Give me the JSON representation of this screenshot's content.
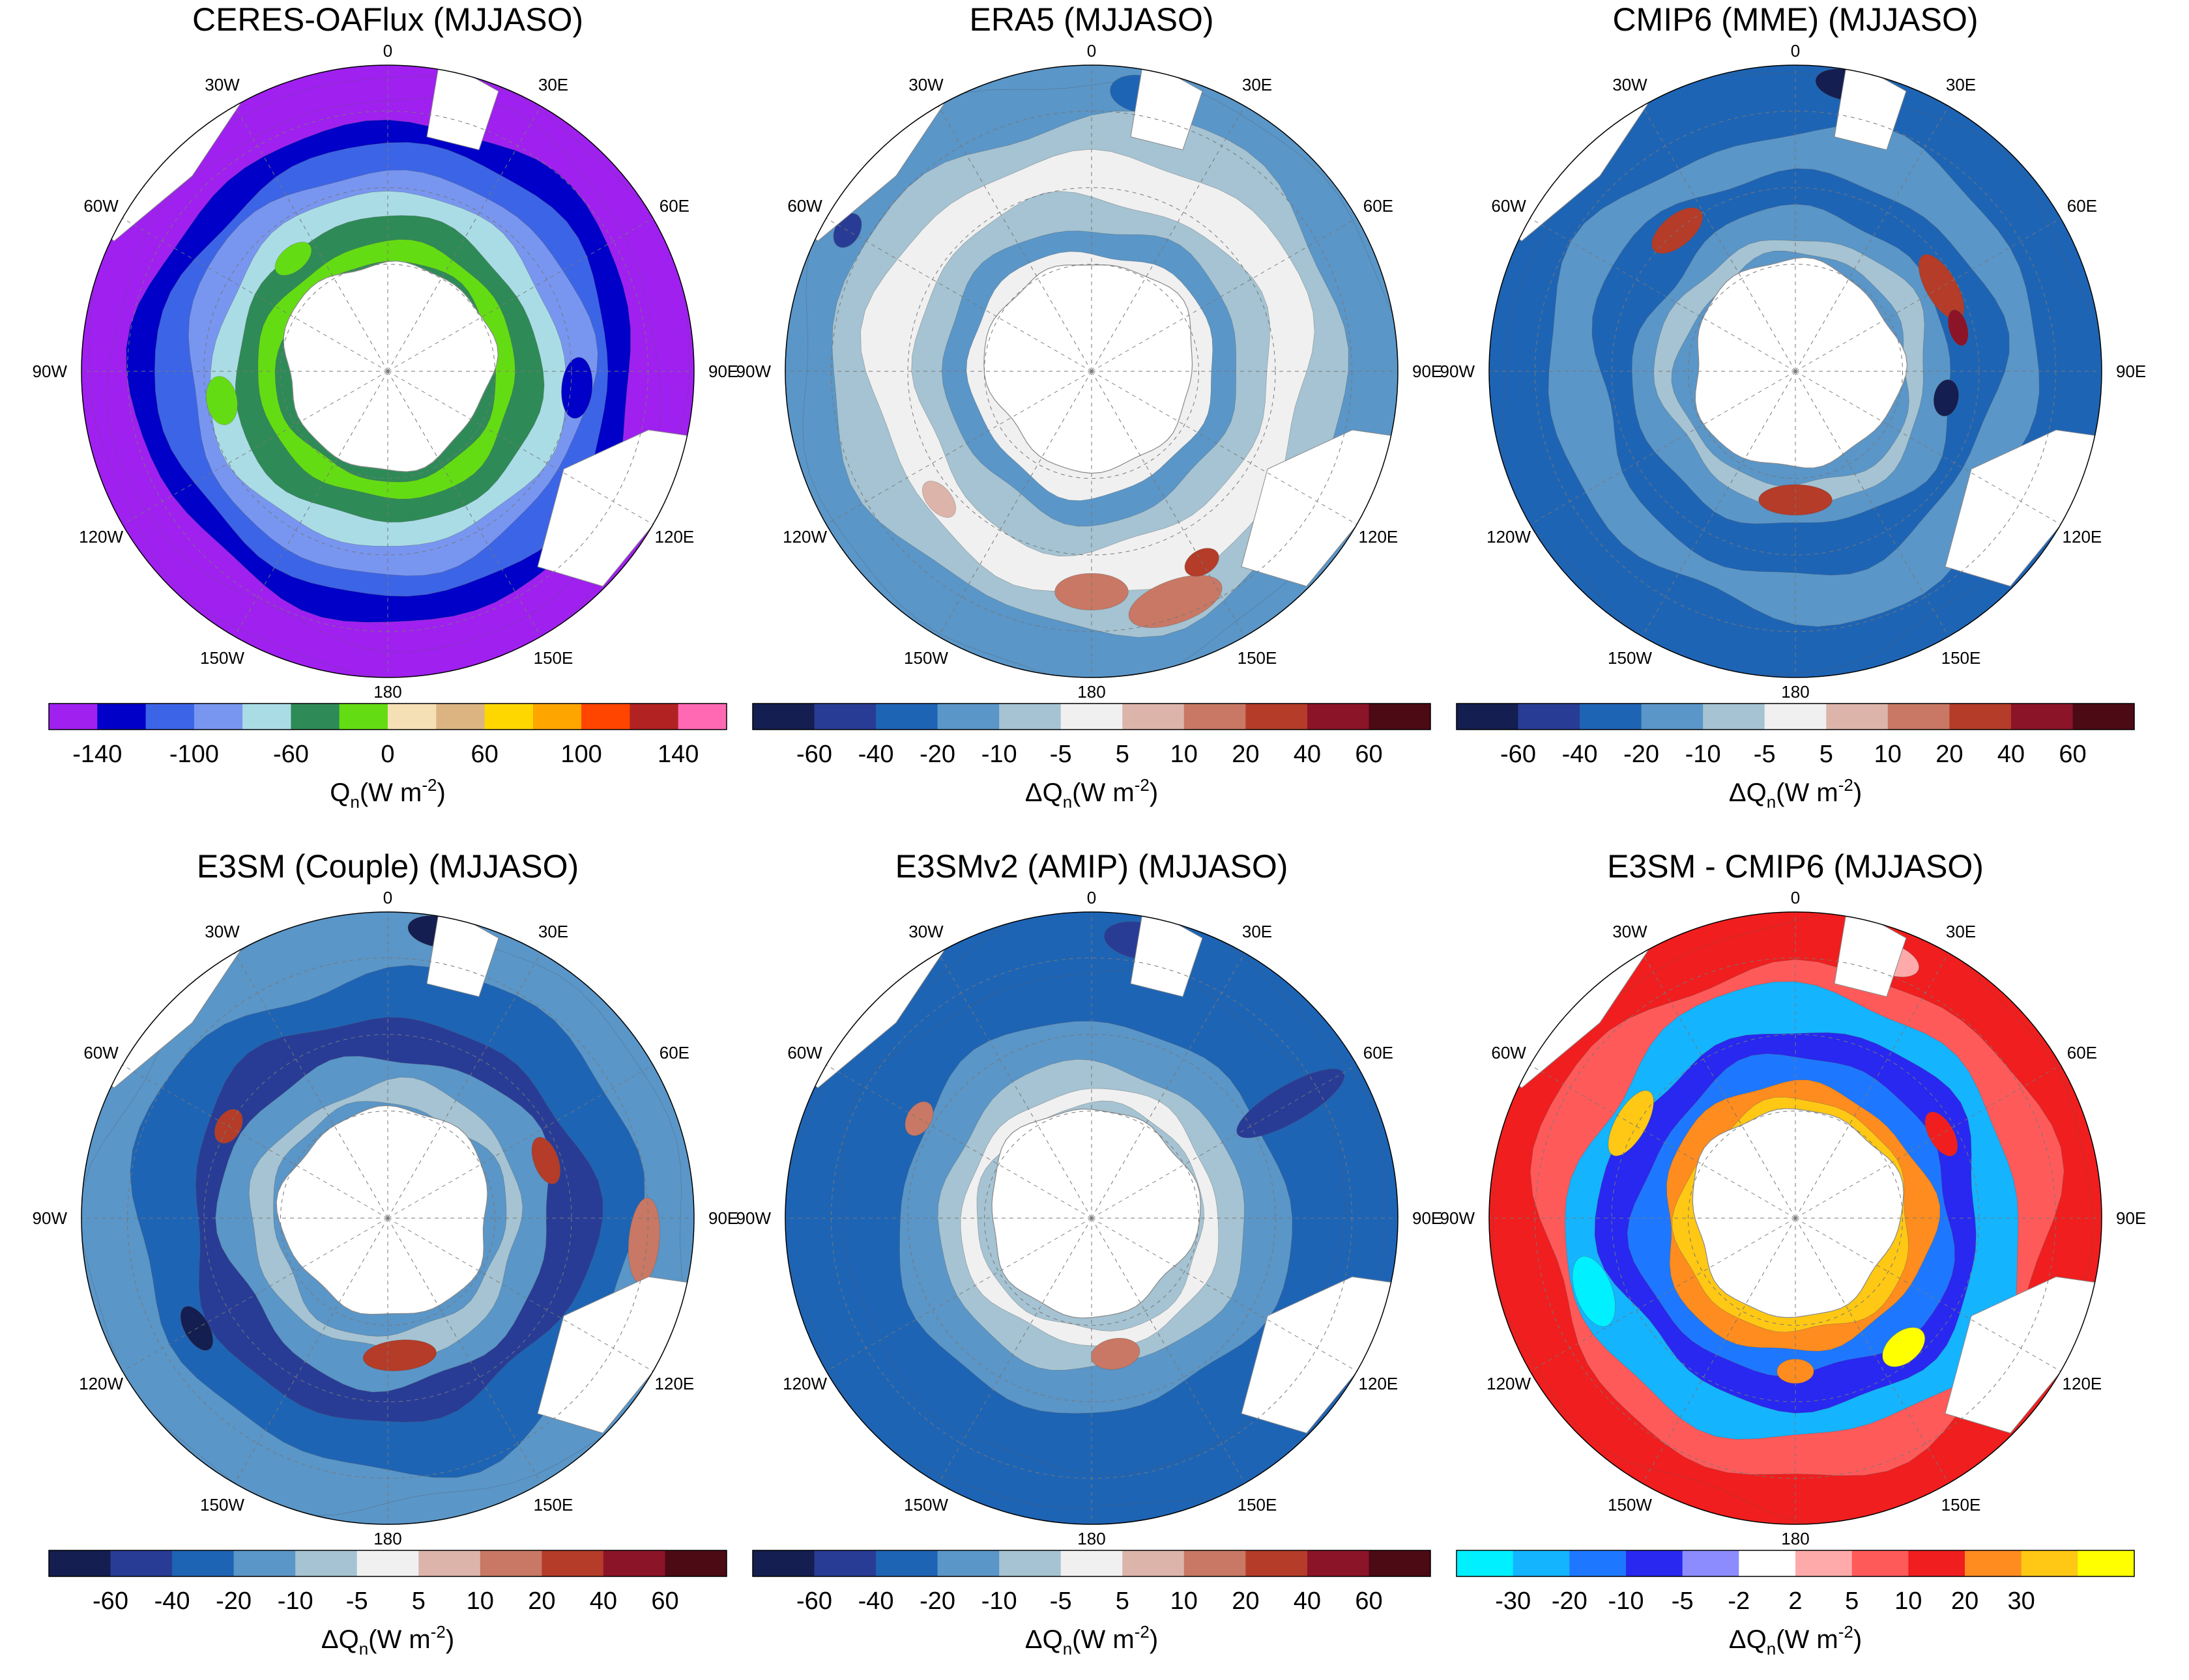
{
  "chart_data": [
    {
      "type": "heatmap",
      "projection": "south-polar-stereographic",
      "title": "CERES-OAFlux  (MJJASO)",
      "lon_labels": {
        "top": "0",
        "e30": "30E",
        "e60": "60E",
        "e90": "90E",
        "e120": "120E",
        "e150": "150E",
        "bottom": "180",
        "w150": "150W",
        "w120": "120W",
        "w90": "90W",
        "w60": "60W",
        "w30": "30W"
      },
      "colorbar": {
        "colors": [
          "#a020f0",
          "#0000c8",
          "#3c64e6",
          "#7896f0",
          "#aadce6",
          "#2e8b57",
          "#64dc14",
          "#f5dfb4",
          "#dcb482",
          "#ffd700",
          "#ffa500",
          "#ff4500",
          "#b22222",
          "#ff69b4"
        ],
        "ticks": [
          {
            "edge": 1,
            "label": "-140"
          },
          {
            "edge": 3,
            "label": "-100"
          },
          {
            "edge": 5,
            "label": "-60"
          },
          {
            "edge": 7,
            "label": "0"
          },
          {
            "edge": 9,
            "label": "60"
          },
          {
            "edge": 11,
            "label": "100"
          },
          {
            "edge": 13,
            "label": "140"
          }
        ],
        "label_main": "Q",
        "label_sub": "n",
        "label_unit": "(W m",
        "label_sup": "-2",
        "label_end": ")"
      },
      "rings": [
        {
          "r": 0.98,
          "c": 0
        },
        {
          "r": 0.9,
          "c": 0
        },
        {
          "r": 0.82,
          "c": 1
        },
        {
          "r": 0.74,
          "c": 2
        },
        {
          "r": 0.66,
          "c": 3
        },
        {
          "r": 0.58,
          "c": 4
        },
        {
          "r": 0.5,
          "c": 5
        },
        {
          "r": 0.42,
          "c": 6
        },
        {
          "r": 0.36,
          "c": 5
        }
      ],
      "patches": [
        {
          "ang": 95,
          "r": 0.62,
          "rx": 0.1,
          "ry": 0.05,
          "c": 1
        },
        {
          "ang": 260,
          "r": 0.55,
          "rx": 0.08,
          "ry": 0.05,
          "c": 6
        },
        {
          "ang": 320,
          "r": 0.48,
          "rx": 0.07,
          "ry": 0.04,
          "c": 6
        }
      ],
      "wobble": 0.05,
      "seed": 1
    },
    {
      "type": "heatmap",
      "projection": "south-polar-stereographic",
      "title": "ERA5  (MJJASO)",
      "lon_labels": {
        "top": "0",
        "e30": "30E",
        "e60": "60E",
        "e90": "90E",
        "e120": "120E",
        "e150": "150E",
        "bottom": "180",
        "w150": "150W",
        "w120": "120W",
        "w90": "90W",
        "w60": "60W",
        "w30": "30W"
      },
      "colorbar": {
        "colors": [
          "#141e50",
          "#283c96",
          "#1e64b4",
          "#5a96c8",
          "#a5c3d2",
          "#f0f0f0",
          "#dcb4aa",
          "#c87864",
          "#b43c28",
          "#8c1428",
          "#4b0a14"
        ],
        "ticks": [
          {
            "edge": 1,
            "label": "-60"
          },
          {
            "edge": 2,
            "label": "-40"
          },
          {
            "edge": 3,
            "label": "-20"
          },
          {
            "edge": 4,
            "label": "-10"
          },
          {
            "edge": 5,
            "label": "-5"
          },
          {
            "edge": 6,
            "label": "5"
          },
          {
            "edge": 7,
            "label": "10"
          },
          {
            "edge": 8,
            "label": "20"
          },
          {
            "edge": 9,
            "label": "40"
          },
          {
            "edge": 10,
            "label": "60"
          }
        ],
        "label_main": "ΔQ",
        "label_sub": "n",
        "label_unit": "(W m",
        "label_sup": "-2",
        "label_end": ")"
      },
      "rings": [
        {
          "r": 0.98,
          "c": 3
        },
        {
          "r": 0.84,
          "c": 4
        },
        {
          "r": 0.72,
          "c": 5
        },
        {
          "r": 0.58,
          "c": 4
        },
        {
          "r": 0.48,
          "c": 3
        },
        {
          "r": 0.4,
          "c": 5
        }
      ],
      "patches": [
        {
          "ang": 180,
          "r": 0.72,
          "rx": 0.12,
          "ry": 0.06,
          "c": 7
        },
        {
          "ang": 160,
          "r": 0.8,
          "rx": 0.16,
          "ry": 0.07,
          "c": 7
        },
        {
          "ang": 150,
          "r": 0.72,
          "rx": 0.06,
          "ry": 0.04,
          "c": 8
        },
        {
          "ang": 230,
          "r": 0.65,
          "rx": 0.07,
          "ry": 0.04,
          "c": 6
        },
        {
          "ang": 10,
          "r": 0.92,
          "rx": 0.1,
          "ry": 0.06,
          "c": 2
        },
        {
          "ang": 300,
          "r": 0.92,
          "rx": 0.06,
          "ry": 0.04,
          "c": 1
        }
      ],
      "wobble": 0.07,
      "seed": 2
    },
    {
      "type": "heatmap",
      "projection": "south-polar-stereographic",
      "title": "CMIP6 (MME)  (MJJASO)",
      "lon_labels": {
        "top": "0",
        "e30": "30E",
        "e60": "60E",
        "e90": "90E",
        "e120": "120E",
        "e150": "150E",
        "bottom": "180",
        "w150": "150W",
        "w120": "120W",
        "w90": "90W",
        "w60": "60W",
        "w30": "30W"
      },
      "colorbar": {
        "colors": [
          "#141e50",
          "#283c96",
          "#1e64b4",
          "#5a96c8",
          "#a5c3d2",
          "#f0f0f0",
          "#dcb4aa",
          "#c87864",
          "#b43c28",
          "#8c1428",
          "#4b0a14"
        ],
        "ticks": [
          {
            "edge": 1,
            "label": "-60"
          },
          {
            "edge": 2,
            "label": "-40"
          },
          {
            "edge": 3,
            "label": "-20"
          },
          {
            "edge": 4,
            "label": "-10"
          },
          {
            "edge": 5,
            "label": "-5"
          },
          {
            "edge": 6,
            "label": "5"
          },
          {
            "edge": 7,
            "label": "10"
          },
          {
            "edge": 8,
            "label": "20"
          },
          {
            "edge": 9,
            "label": "40"
          },
          {
            "edge": 10,
            "label": "60"
          }
        ],
        "label_main": "ΔQ",
        "label_sub": "n",
        "label_unit": "(W m",
        "label_sup": "-2",
        "label_end": ")"
      },
      "rings": [
        {
          "r": 0.98,
          "c": 2
        },
        {
          "r": 0.8,
          "c": 3
        },
        {
          "r": 0.66,
          "c": 2
        },
        {
          "r": 0.52,
          "c": 3
        },
        {
          "r": 0.44,
          "c": 4
        },
        {
          "r": 0.38,
          "c": 3
        }
      ],
      "patches": [
        {
          "ang": 60,
          "r": 0.55,
          "rx": 0.12,
          "ry": 0.05,
          "c": 8
        },
        {
          "ang": 75,
          "r": 0.55,
          "rx": 0.06,
          "ry": 0.03,
          "c": 9
        },
        {
          "ang": 320,
          "r": 0.6,
          "rx": 0.1,
          "ry": 0.05,
          "c": 8
        },
        {
          "ang": 180,
          "r": 0.42,
          "rx": 0.12,
          "ry": 0.05,
          "c": 8
        },
        {
          "ang": 100,
          "r": 0.5,
          "rx": 0.06,
          "ry": 0.04,
          "c": 0
        },
        {
          "ang": 10,
          "r": 0.95,
          "rx": 0.1,
          "ry": 0.05,
          "c": 0
        }
      ],
      "wobble": 0.08,
      "seed": 3
    },
    {
      "type": "heatmap",
      "projection": "south-polar-stereographic",
      "title": "E3SM (Couple)  (MJJASO)",
      "lon_labels": {
        "top": "0",
        "e30": "30E",
        "e60": "60E",
        "e90": "90E",
        "e120": "120E",
        "e150": "150E",
        "bottom": "180",
        "w150": "150W",
        "w120": "120W",
        "w90": "90W",
        "w60": "60W",
        "w30": "30W"
      },
      "colorbar": {
        "colors": [
          "#141e50",
          "#283c96",
          "#1e64b4",
          "#5a96c8",
          "#a5c3d2",
          "#f0f0f0",
          "#dcb4aa",
          "#c87864",
          "#b43c28",
          "#8c1428",
          "#4b0a14"
        ],
        "ticks": [
          {
            "edge": 1,
            "label": "-60"
          },
          {
            "edge": 2,
            "label": "-40"
          },
          {
            "edge": 3,
            "label": "-20"
          },
          {
            "edge": 4,
            "label": "-10"
          },
          {
            "edge": 5,
            "label": "-5"
          },
          {
            "edge": 6,
            "label": "5"
          },
          {
            "edge": 7,
            "label": "10"
          },
          {
            "edge": 8,
            "label": "20"
          },
          {
            "edge": 9,
            "label": "40"
          },
          {
            "edge": 10,
            "label": "60"
          }
        ],
        "label_main": "ΔQ",
        "label_sub": "n",
        "label_unit": "(W m",
        "label_sup": "-2",
        "label_end": ")"
      },
      "rings": [
        {
          "r": 0.98,
          "c": 3
        },
        {
          "r": 0.82,
          "c": 2
        },
        {
          "r": 0.66,
          "c": 1
        },
        {
          "r": 0.54,
          "c": 3
        },
        {
          "r": 0.44,
          "c": 4
        },
        {
          "r": 0.38,
          "c": 3
        }
      ],
      "patches": [
        {
          "ang": 95,
          "r": 0.84,
          "rx": 0.14,
          "ry": 0.05,
          "c": 7
        },
        {
          "ang": 240,
          "r": 0.72,
          "rx": 0.08,
          "ry": 0.04,
          "c": 0
        },
        {
          "ang": 70,
          "r": 0.55,
          "rx": 0.08,
          "ry": 0.04,
          "c": 8
        },
        {
          "ang": 300,
          "r": 0.6,
          "rx": 0.06,
          "ry": 0.04,
          "c": 8
        },
        {
          "ang": 175,
          "r": 0.45,
          "rx": 0.12,
          "ry": 0.05,
          "c": 8
        },
        {
          "ang": 10,
          "r": 0.95,
          "rx": 0.1,
          "ry": 0.05,
          "c": 0
        }
      ],
      "wobble": 0.08,
      "seed": 4
    },
    {
      "type": "heatmap",
      "projection": "south-polar-stereographic",
      "title": "E3SMv2 (AMIP)  (MJJASO)",
      "lon_labels": {
        "top": "0",
        "e30": "30E",
        "e60": "60E",
        "e90": "90E",
        "e120": "120E",
        "e150": "150E",
        "bottom": "180",
        "w150": "150W",
        "w120": "120W",
        "w90": "90W",
        "w60": "60W",
        "w30": "30W"
      },
      "colorbar": {
        "colors": [
          "#141e50",
          "#283c96",
          "#1e64b4",
          "#5a96c8",
          "#a5c3d2",
          "#f0f0f0",
          "#dcb4aa",
          "#c87864",
          "#b43c28",
          "#8c1428",
          "#4b0a14"
        ],
        "ticks": [
          {
            "edge": 1,
            "label": "-60"
          },
          {
            "edge": 2,
            "label": "-40"
          },
          {
            "edge": 3,
            "label": "-20"
          },
          {
            "edge": 4,
            "label": "-10"
          },
          {
            "edge": 5,
            "label": "-5"
          },
          {
            "edge": 6,
            "label": "5"
          },
          {
            "edge": 7,
            "label": "10"
          },
          {
            "edge": 8,
            "label": "20"
          },
          {
            "edge": 9,
            "label": "40"
          },
          {
            "edge": 10,
            "label": "60"
          }
        ],
        "label_main": "ΔQ",
        "label_sub": "n",
        "label_unit": "(W m",
        "label_sup": "-2",
        "label_end": ")"
      },
      "rings": [
        {
          "r": 0.98,
          "c": 2
        },
        {
          "r": 0.82,
          "c": 2
        },
        {
          "r": 0.64,
          "c": 3
        },
        {
          "r": 0.5,
          "c": 4
        },
        {
          "r": 0.42,
          "c": 5
        },
        {
          "r": 0.37,
          "c": 4
        }
      ],
      "patches": [
        {
          "ang": 10,
          "r": 0.92,
          "rx": 0.12,
          "ry": 0.06,
          "c": 1
        },
        {
          "ang": 60,
          "r": 0.75,
          "rx": 0.06,
          "ry": 0.2,
          "c": 1
        },
        {
          "ang": 170,
          "r": 0.45,
          "rx": 0.08,
          "ry": 0.05,
          "c": 7
        },
        {
          "ang": 300,
          "r": 0.65,
          "rx": 0.06,
          "ry": 0.04,
          "c": 7
        }
      ],
      "wobble": 0.06,
      "seed": 5
    },
    {
      "type": "heatmap",
      "projection": "south-polar-stereographic",
      "title": "E3SM - CMIP6  (MJJASO)",
      "lon_labels": {
        "top": "0",
        "e30": "30E",
        "e60": "60E",
        "e90": "90E",
        "e120": "120E",
        "e150": "150E",
        "bottom": "180",
        "w150": "150W",
        "w120": "120W",
        "w90": "90W",
        "w60": "60W",
        "w30": "30W"
      },
      "colorbar": {
        "colors": [
          "#00f0ff",
          "#14b4ff",
          "#1e78ff",
          "#2828f0",
          "#8c8cff",
          "#ffffff",
          "#ffaaaa",
          "#ff5a5a",
          "#f01e1e",
          "#ff8c1e",
          "#ffc814",
          "#ffff00"
        ],
        "ticks": [
          {
            "edge": 1,
            "label": "-30"
          },
          {
            "edge": 2,
            "label": "-20"
          },
          {
            "edge": 3,
            "label": "-10"
          },
          {
            "edge": 4,
            "label": "-5"
          },
          {
            "edge": 5,
            "label": "-2"
          },
          {
            "edge": 6,
            "label": "2"
          },
          {
            "edge": 7,
            "label": "5"
          },
          {
            "edge": 8,
            "label": "10"
          },
          {
            "edge": 9,
            "label": "20"
          },
          {
            "edge": 10,
            "label": "30"
          }
        ],
        "label_main": "ΔQ",
        "label_sub": "n",
        "label_unit": "(W m",
        "label_sup": "-2",
        "label_end": ")"
      },
      "rings": [
        {
          "r": 0.98,
          "c": 8
        },
        {
          "r": 0.84,
          "c": 7
        },
        {
          "r": 0.74,
          "c": 1
        },
        {
          "r": 0.62,
          "c": 3
        },
        {
          "r": 0.52,
          "c": 2
        },
        {
          "r": 0.44,
          "c": 9
        },
        {
          "r": 0.38,
          "c": 10
        }
      ],
      "patches": [
        {
          "ang": 250,
          "r": 0.7,
          "rx": 0.12,
          "ry": 0.06,
          "c": 0
        },
        {
          "ang": 300,
          "r": 0.62,
          "rx": 0.12,
          "ry": 0.05,
          "c": 10
        },
        {
          "ang": 140,
          "r": 0.55,
          "rx": 0.08,
          "ry": 0.05,
          "c": 11
        },
        {
          "ang": 180,
          "r": 0.5,
          "rx": 0.06,
          "ry": 0.04,
          "c": 9
        },
        {
          "ang": 60,
          "r": 0.55,
          "rx": 0.08,
          "ry": 0.04,
          "c": 8
        },
        {
          "ang": 20,
          "r": 0.9,
          "rx": 0.1,
          "ry": 0.05,
          "c": 6
        }
      ],
      "wobble": 0.08,
      "seed": 6
    }
  ]
}
